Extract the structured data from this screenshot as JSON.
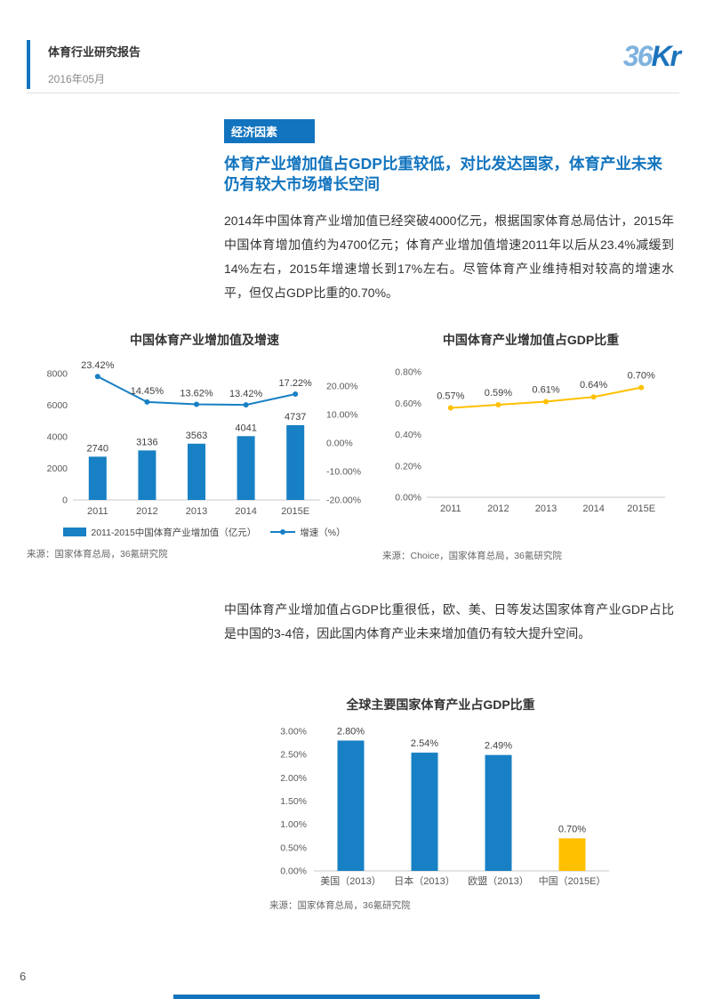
{
  "page": {
    "number": "6"
  },
  "header": {
    "title": "体育行业研究报告",
    "date": "2016年05月",
    "logo_36": "36",
    "logo_kr": "Kr"
  },
  "section": {
    "badge": "经济因素",
    "heading": "体育产业增加值占GDP比重较低，对比发达国家，体育产业未来仍有较大市场增长空间",
    "paragraph1": "2014年中国体育产业增加值已经突破4000亿元，根据国家体育总局估计，2015年中国体育增加值约为4700亿元；体育产业增加值增速2011年以后从23.4%减缓到14%左右，2015年增速增长到17%左右。尽管体育产业维持相对较高的增速水平，但仅占GDP比重的0.70%。",
    "paragraph2": "中国体育产业增加值占GDP比重很低，欧、美、日等发达国家体育产业GDP占比是中国的3-4倍，因此国内体育产业未来增加值仍有较大提升空间。"
  },
  "colors": {
    "accent": "#1274BE",
    "bar_blue": "#1880C4",
    "line_yellow": "#FFC000"
  },
  "chart_data": [
    {
      "type": "bar",
      "subtype": "combo_bar_line",
      "title": "中国体育产业增加值及增速",
      "categories": [
        "2011",
        "2012",
        "2013",
        "2014",
        "2015E"
      ],
      "series": [
        {
          "name": "2011-2015中国体育产业增加值（亿元）",
          "kind": "bar",
          "values": [
            2740,
            3136,
            3563,
            4041,
            4737
          ],
          "color": "#1880C4"
        },
        {
          "name": "增速（%）",
          "kind": "line",
          "values": [
            23.42,
            14.45,
            13.62,
            13.42,
            17.22
          ],
          "color": "#1880C4"
        }
      ],
      "bar_labels": [
        "2740",
        "3136",
        "3563",
        "4041",
        "4737"
      ],
      "line_labels": [
        "23.42%",
        "14.45%",
        "13.62%",
        "13.42%",
        "17.22%"
      ],
      "left_axis": {
        "min": 0,
        "max": 8000,
        "step": 2000
      },
      "right_axis": {
        "min": -20,
        "max": 20,
        "step": 10
      },
      "left_ticks": [
        0,
        2000,
        4000,
        6000,
        8000
      ],
      "right_ticks": [
        -20,
        -10,
        0,
        10,
        20
      ],
      "grid": false,
      "legend_position": "bottom",
      "source": "来源：国家体育总局，36氪研究院"
    },
    {
      "type": "line",
      "title": "中国体育产业增加值占GDP比重",
      "categories": [
        "2011",
        "2012",
        "2013",
        "2014",
        "2015E"
      ],
      "values": [
        0.57,
        0.59,
        0.61,
        0.64,
        0.7
      ],
      "labels": [
        "0.57%",
        "0.59%",
        "0.61%",
        "0.64%",
        "0.70%"
      ],
      "color": "#FFC000",
      "y_axis": {
        "min": 0,
        "max": 0.8,
        "step": 0.2
      },
      "ticks": [
        0,
        0.2,
        0.4,
        0.6,
        0.8
      ],
      "grid": false,
      "source": "来源：Choice，国家体育总局，36氪研究院"
    },
    {
      "type": "bar",
      "title": "全球主要国家体育产业占GDP比重",
      "categories": [
        "美国（2013）",
        "日本（2013）",
        "欧盟（2013）",
        "中国（2015E）"
      ],
      "values": [
        2.8,
        2.54,
        2.49,
        0.7
      ],
      "labels": [
        "2.80%",
        "2.54%",
        "2.49%",
        "0.70%"
      ],
      "bar_colors": [
        "#1880C4",
        "#1880C4",
        "#1880C4",
        "#FFC000"
      ],
      "y_axis": {
        "min": 0,
        "max": 3,
        "step": 0.5
      },
      "ticks": [
        0,
        0.5,
        1,
        1.5,
        2,
        2.5,
        3
      ],
      "grid": false,
      "source": "来源：国家体育总局，36氪研究院"
    }
  ]
}
